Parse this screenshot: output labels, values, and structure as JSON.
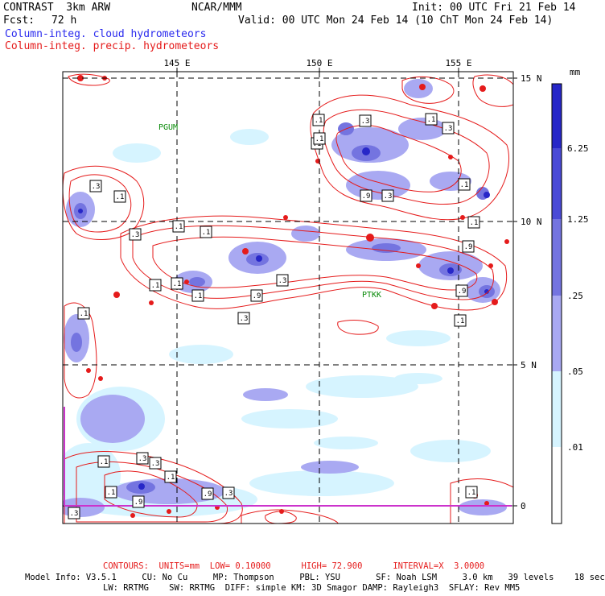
{
  "header": {
    "model_name": "CONTRAST  3km ARW",
    "org": "NCAR/MMM",
    "init": "Init: 00 UTC Fri 21 Feb 14",
    "fcst_label": "Fcst:",
    "fcst_value": "72 h",
    "valid": "Valid: 00 UTC Mon 24 Feb 14 (10 ChT Mon 24 Feb 14)",
    "field_cloud": "Column-integ. cloud hydrometeors",
    "field_precip": "Column-integ. precip. hydrometeors"
  },
  "axes": {
    "lon_labels": [
      "145 E",
      "150 E",
      "155 E"
    ],
    "lat_labels": [
      "15 N",
      "10 N",
      "5 N",
      "0"
    ]
  },
  "stations": [
    "PGUM",
    "PTKK"
  ],
  "contour_labels": [
    ".1",
    ".3",
    ".9"
  ],
  "colorbar": {
    "unit": "mm",
    "labels": [
      "6.25",
      "1.25",
      ".25",
      ".05",
      ".01"
    ],
    "colors": [
      "#2727c8",
      "#4a4ad6",
      "#7474e0",
      "#a9a9f2",
      "#d6f4ff",
      "#ffffff"
    ]
  },
  "footer": {
    "contours": "CONTOURS:  UNITS=mm  LOW= 0.10000      HIGH= 72.900      INTERVAL=X  3.0000",
    "model_info_1": "Model Info: V3.5.1     CU: No Cu     MP: Thompson     PBL: YSU       SF: Noah LSM     3.0 km   39 levels    18 sec",
    "model_info_2": "LW: RRTMG    SW: RRTMG  DIFF: simple KM: 3D Smagor DAMP: Rayleigh3  SFLAY: Rev MM5"
  },
  "colors": {
    "cloud": "#2a2aee",
    "precip": "#e51b1b",
    "station": "#0a8a0a",
    "boundary": "#cc33cc"
  }
}
